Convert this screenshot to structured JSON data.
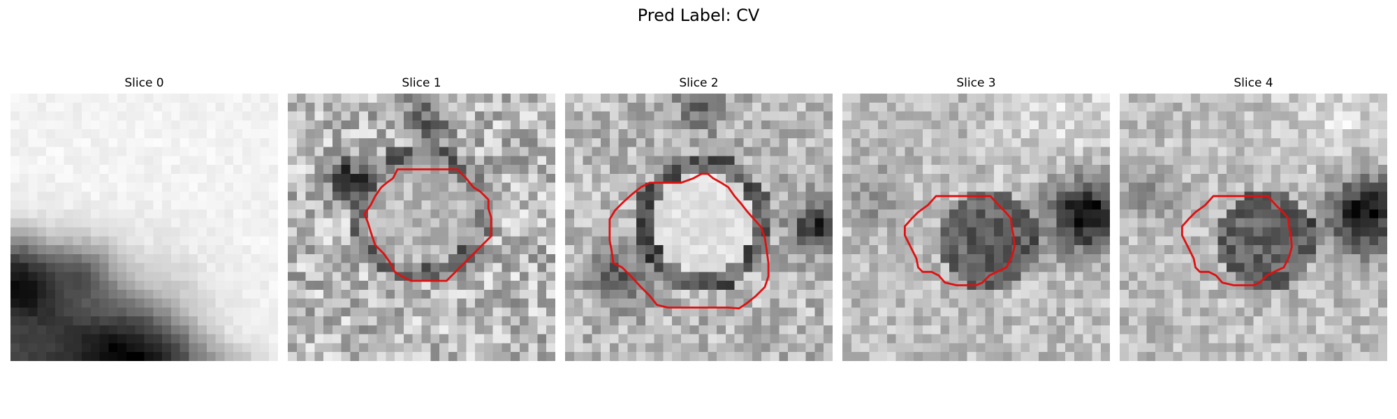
{
  "figure": {
    "title": "Pred Label: CV",
    "contour_color": "#e01010"
  },
  "panels": [
    {
      "title": "Slice 0",
      "pattern": "gradient",
      "has_contour": false
    },
    {
      "title": "Slice 1",
      "pattern": "noisy-ring",
      "has_contour": true
    },
    {
      "title": "Slice 2",
      "pattern": "bright-core-dark-ring",
      "has_contour": true
    },
    {
      "title": "Slice 3",
      "pattern": "dark-core",
      "has_contour": true
    },
    {
      "title": "Slice 4",
      "pattern": "dark-core",
      "has_contour": true
    }
  ]
}
